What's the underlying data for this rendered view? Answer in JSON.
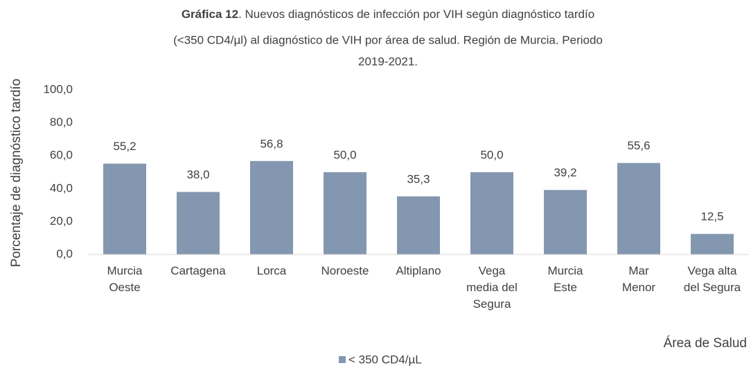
{
  "chart_data": {
    "type": "bar",
    "title": [
      "Gráfica 12",
      ". Nuevos diagnósticos de infección por VIH según diagnóstico tardío",
      "(<350 CD4/µl) al diagnóstico de VIH por área de salud. Región de Murcia. Periodo",
      "2019-2021."
    ],
    "y_label": "Porcentaje de diagnóstico tardío",
    "x_label": "Área de Salud",
    "categories": [
      [
        "Murcia",
        "Oeste"
      ],
      [
        "Cartagena"
      ],
      [
        "Lorca"
      ],
      [
        "Noroeste"
      ],
      [
        "Altiplano"
      ],
      [
        "Vega",
        "media del",
        "Segura"
      ],
      [
        "Murcia",
        "Este"
      ],
      [
        "Mar",
        "Menor"
      ],
      [
        "Vega alta",
        "del Segura"
      ]
    ],
    "series": [
      {
        "name": "< 350 CD4/µL",
        "color": "#8497b0",
        "values": [
          55.2,
          38.0,
          56.8,
          50.0,
          35.3,
          50.0,
          39.2,
          55.6,
          12.5
        ],
        "value_labels": [
          "55,2",
          "38,0",
          "56,8",
          "50,0",
          "35,3",
          "50,0",
          "39,2",
          "55,6",
          "12,5"
        ]
      }
    ],
    "ylim": [
      0,
      100
    ],
    "yticks": [
      {
        "value": 0,
        "label": "0,0"
      },
      {
        "value": 20,
        "label": "20,0"
      },
      {
        "value": 40,
        "label": "40,0"
      },
      {
        "value": 60,
        "label": "60,0"
      },
      {
        "value": 80,
        "label": "80,0"
      },
      {
        "value": 100,
        "label": "100,0"
      }
    ],
    "grid": false,
    "legend": "bottom"
  }
}
